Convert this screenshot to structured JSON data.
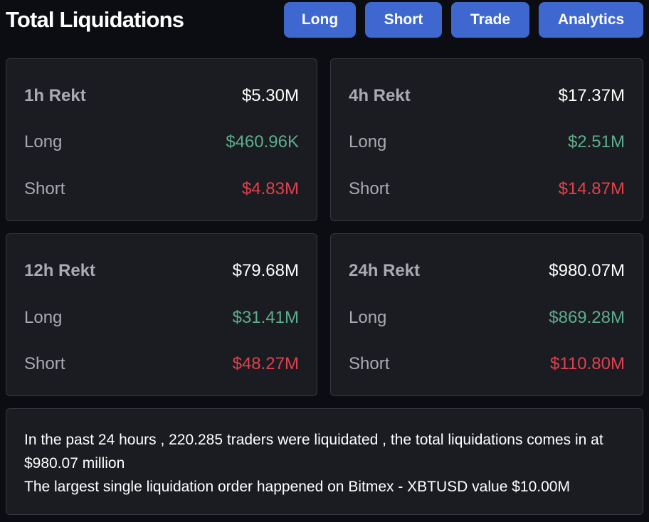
{
  "header": {
    "title": "Total Liquidations",
    "buttons": {
      "long": "Long",
      "short": "Short",
      "trade": "Trade",
      "analytics": "Analytics"
    }
  },
  "cards": [
    {
      "title": "1h Rekt",
      "total": "$5.30M",
      "long_label": "Long",
      "long": "$460.96K",
      "short_label": "Short",
      "short": "$4.83M"
    },
    {
      "title": "4h Rekt",
      "total": "$17.37M",
      "long_label": "Long",
      "long": "$2.51M",
      "short_label": "Short",
      "short": "$14.87M"
    },
    {
      "title": "12h Rekt",
      "total": "$79.68M",
      "long_label": "Long",
      "long": "$31.41M",
      "short_label": "Short",
      "short": "$48.27M"
    },
    {
      "title": "24h Rekt",
      "total": "$980.07M",
      "long_label": "Long",
      "long": "$869.28M",
      "short_label": "Short",
      "short": "$110.80M"
    }
  ],
  "summary": {
    "line1": "In the past 24 hours , 220.285 traders were liquidated , the total liquidations comes in at $980.07 million",
    "line2": "The largest single liquidation order happened on Bitmex - XBTUSD value $10.00M"
  },
  "colors": {
    "background": "#0b0d12",
    "card": "#1b1c21",
    "button": "#3e68d0",
    "long": "#5cae8c",
    "short": "#e0414c"
  }
}
